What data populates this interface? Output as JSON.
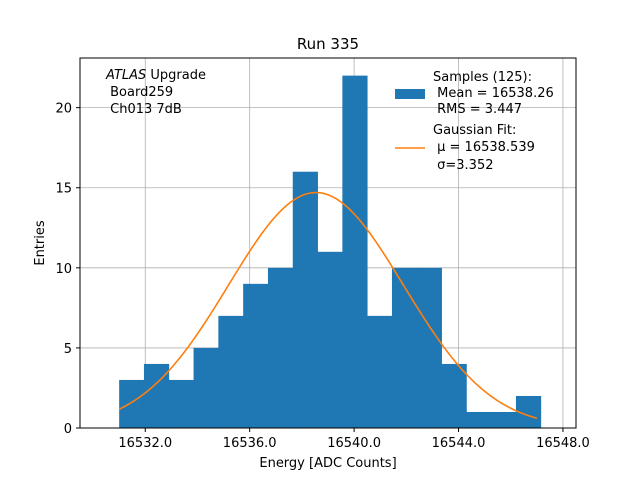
{
  "chart_data": {
    "type": "bar",
    "title": "Run 335",
    "xlabel": "Energy [ADC Counts]",
    "ylabel": "Entries",
    "xlim": [
      16529.5,
      16548.5
    ],
    "ylim": [
      0,
      23.1
    ],
    "xticks": [
      16532.0,
      16536.0,
      16540.0,
      16544.0,
      16548.0
    ],
    "xtick_labels": [
      "16532.0",
      "16536.0",
      "16540.0",
      "16544.0",
      "16548.0"
    ],
    "yticks": [
      0,
      5,
      10,
      15,
      20
    ],
    "ytick_labels": [
      "0",
      "5",
      "10",
      "15",
      "20"
    ],
    "grid": true,
    "bins": {
      "start": 16531.0,
      "width": 0.95,
      "values": [
        3,
        4,
        3,
        5,
        7,
        9,
        10,
        16,
        11,
        22,
        7,
        10,
        10,
        4,
        1,
        1,
        2
      ]
    },
    "fit": {
      "mu": 16538.539,
      "sigma": 3.352,
      "amplitude": 14.7,
      "x_range": [
        16531.0,
        16547.0
      ]
    },
    "annotation": {
      "italic_part": "ATLAS",
      "line1_rest": " Upgrade",
      "line2": " Board259",
      "line3": " Ch013 7dB"
    },
    "legend": {
      "placement": "top-right",
      "samples_header": "Samples (125):",
      "samples_mean": " Mean = 16538.26",
      "samples_rms": " RMS = 3.447",
      "fit_header": "Gaussian Fit:",
      "fit_mu": " μ = 16538.539",
      "fit_sigma": " σ=3.352"
    },
    "colors": {
      "bars": "#1f77b4",
      "fit": "#ff7f0e",
      "grid": "#b0b0b0"
    }
  }
}
